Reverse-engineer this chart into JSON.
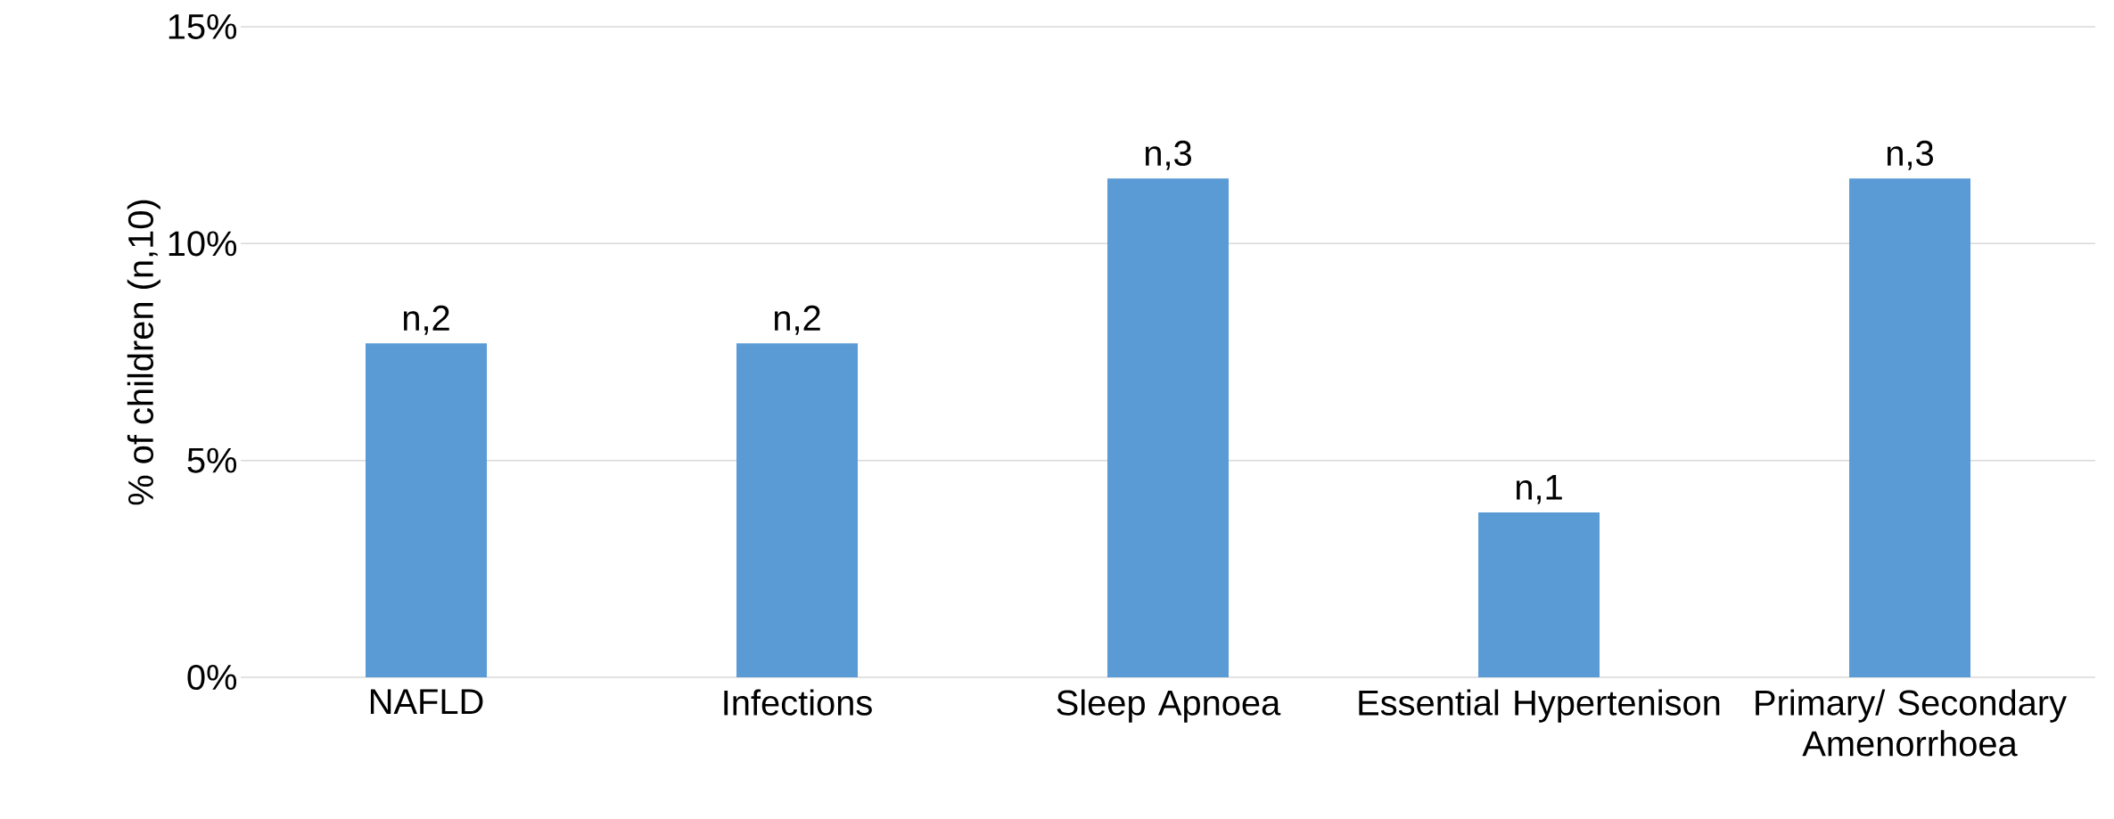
{
  "chart_data": {
    "type": "bar",
    "ylabel": "% of children (n,10)",
    "categories": [
      "NAFLD",
      "Infections",
      "Sleep Apnoea",
      "Essential Hypertenison",
      "Primary/ Secondary Amenorrhoea"
    ],
    "values": [
      7.7,
      7.7,
      11.5,
      3.8,
      11.5
    ],
    "annotations": [
      {
        "text": "n,2",
        "x": "NAFLD",
        "y": 7.7
      },
      {
        "text": "n,2",
        "x": "Infections",
        "y": 7.7
      },
      {
        "text": "n,3",
        "x": "Sleep Apnoea",
        "y": 11.5
      },
      {
        "text": "n,1",
        "x": "Essential Hypertenison",
        "y": 3.8
      },
      {
        "text": "n,3",
        "x": "Primary/ Secondary Amenorrhoea",
        "y": 11.5
      }
    ],
    "color": "#5b9bd5",
    "ylim": [
      0,
      15
    ],
    "yticks": [
      {
        "value": 0,
        "label": "0%"
      },
      {
        "value": 5,
        "label": "5%"
      },
      {
        "value": 10,
        "label": "10%"
      },
      {
        "value": 15,
        "label": "15%"
      }
    ],
    "grid": "y"
  }
}
